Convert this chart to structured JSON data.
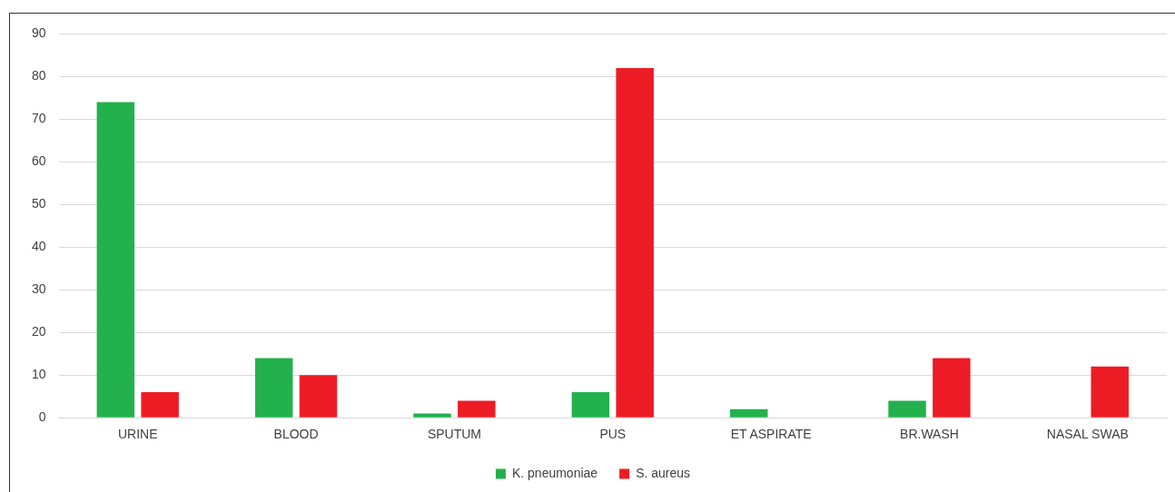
{
  "chart_data": {
    "type": "bar",
    "categories": [
      "URINE",
      "BLOOD",
      "SPUTUM",
      "PUS",
      "ET ASPIRATE",
      "BR.WASH",
      "NASAL SWAB"
    ],
    "series": [
      {
        "name": "K. pneumoniae",
        "color": "#23b14d",
        "values": [
          74,
          14,
          1,
          6,
          2,
          4,
          0
        ]
      },
      {
        "name": "S. aureus",
        "color": "#ed1c24",
        "values": [
          6,
          10,
          4,
          82,
          0,
          14,
          12
        ]
      }
    ],
    "ylim": [
      0,
      90
    ],
    "yticks": [
      0,
      10,
      20,
      30,
      40,
      50,
      60,
      70,
      80,
      90
    ],
    "grid": "y",
    "legend": "bottom"
  }
}
